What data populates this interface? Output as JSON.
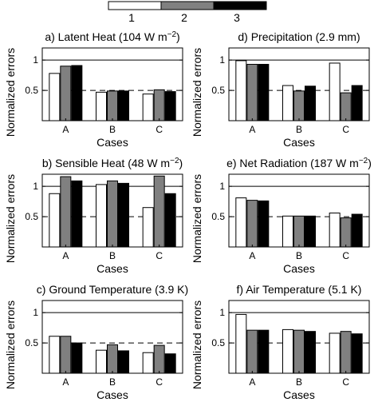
{
  "legend": {
    "position": "top-center",
    "items": [
      {
        "label": "1",
        "color": "#ffffff"
      },
      {
        "label": "2",
        "color": "#808080"
      },
      {
        "label": "3",
        "color": "#000000"
      }
    ]
  },
  "chart_data": [
    {
      "type": "bar",
      "title_main": "a) Latent Heat (104 W m",
      "title_sup": "−2",
      "title_end": ")",
      "xlabel": "Cases",
      "ylabel": "Normalized errors",
      "categories": [
        "A",
        "B",
        "C"
      ],
      "yticks": [
        "0.5",
        "1"
      ],
      "ylim": [
        0,
        1.2
      ],
      "reference_lines": [
        1,
        0.5
      ],
      "series": [
        {
          "name": "1",
          "values": [
            0.78,
            0.47,
            0.44
          ]
        },
        {
          "name": "2",
          "values": [
            0.9,
            0.49,
            0.51
          ]
        },
        {
          "name": "3",
          "values": [
            0.91,
            0.49,
            0.48
          ]
        }
      ]
    },
    {
      "type": "bar",
      "title_main": "d) Precipitation (2.9 mm)",
      "title_sup": "",
      "title_end": "",
      "xlabel": "Cases",
      "ylabel": "Normalized errors",
      "categories": [
        "A",
        "B",
        "C"
      ],
      "yticks": [
        "0.5",
        "1"
      ],
      "ylim": [
        0,
        1.2
      ],
      "reference_lines": [
        1,
        0.5
      ],
      "series": [
        {
          "name": "1",
          "values": [
            0.99,
            0.58,
            0.95
          ]
        },
        {
          "name": "2",
          "values": [
            0.93,
            0.49,
            0.46
          ]
        },
        {
          "name": "3",
          "values": [
            0.93,
            0.57,
            0.58
          ]
        }
      ]
    },
    {
      "type": "bar",
      "title_main": "b) Sensible Heat (48 W m",
      "title_sup": "−2",
      "title_end": ")",
      "xlabel": "Cases",
      "ylabel": "Normalized errors",
      "categories": [
        "A",
        "B",
        "C"
      ],
      "yticks": [
        "0.5",
        "1"
      ],
      "ylim": [
        0,
        1.2
      ],
      "reference_lines": [
        1,
        0.5
      ],
      "series": [
        {
          "name": "1",
          "values": [
            0.88,
            1.03,
            0.65
          ]
        },
        {
          "name": "2",
          "values": [
            1.16,
            1.09,
            1.17
          ]
        },
        {
          "name": "3",
          "values": [
            1.09,
            1.05,
            0.88
          ]
        }
      ]
    },
    {
      "type": "bar",
      "title_main": "e) Net Radiation (187 W m",
      "title_sup": "−2",
      "title_end": ")",
      "xlabel": "Cases",
      "ylabel": "Normalized errors",
      "categories": [
        "A",
        "B",
        "C"
      ],
      "yticks": [
        "0.5",
        "1"
      ],
      "ylim": [
        0,
        1.2
      ],
      "reference_lines": [
        1,
        0.5
      ],
      "series": [
        {
          "name": "1",
          "values": [
            0.81,
            0.51,
            0.56
          ]
        },
        {
          "name": "2",
          "values": [
            0.77,
            0.51,
            0.48
          ]
        },
        {
          "name": "3",
          "values": [
            0.76,
            0.51,
            0.54
          ]
        }
      ]
    },
    {
      "type": "bar",
      "title_main": "c) Ground Temperature (3.9 K)",
      "title_sup": "",
      "title_end": "",
      "xlabel": "Cases",
      "ylabel": "Normalized errors",
      "categories": [
        "A",
        "B",
        "C"
      ],
      "yticks": [
        "0.5",
        "1"
      ],
      "ylim": [
        0,
        1.2
      ],
      "reference_lines": [
        1,
        0.5
      ],
      "series": [
        {
          "name": "1",
          "values": [
            0.61,
            0.38,
            0.34
          ]
        },
        {
          "name": "2",
          "values": [
            0.61,
            0.47,
            0.46
          ]
        },
        {
          "name": "3",
          "values": [
            0.5,
            0.37,
            0.32
          ]
        }
      ]
    },
    {
      "type": "bar",
      "title_main": "f) Air Temperature (5.1 K)",
      "title_sup": "",
      "title_end": "",
      "xlabel": "Cases",
      "ylabel": "Normalized errors",
      "categories": [
        "A",
        "B",
        "C"
      ],
      "yticks": [
        "0.5",
        "1"
      ],
      "ylim": [
        0,
        1.2
      ],
      "reference_lines": [
        1,
        0.5
      ],
      "series": [
        {
          "name": "1",
          "values": [
            0.97,
            0.72,
            0.66
          ]
        },
        {
          "name": "2",
          "values": [
            0.71,
            0.71,
            0.69
          ]
        },
        {
          "name": "3",
          "values": [
            0.71,
            0.69,
            0.65
          ]
        }
      ]
    }
  ]
}
